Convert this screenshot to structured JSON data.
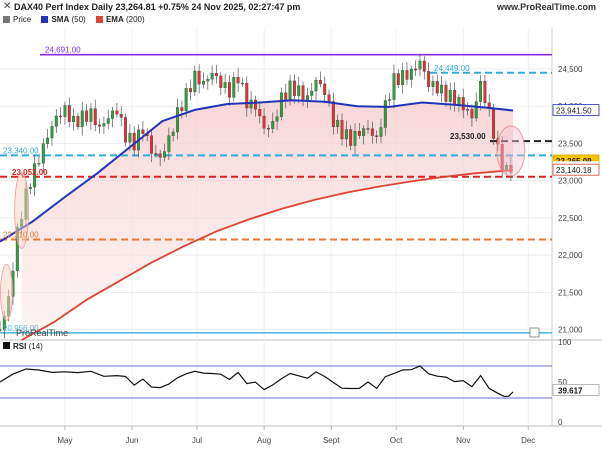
{
  "header": {
    "title": "DAX40 Perf Index Daily 23,264.81 +0.75% 24 Nov 2025, 02:27:47 pm",
    "site": "www.ProRealTime.com",
    "brand": "ProRealTime"
  },
  "legend": {
    "price_label": "Price",
    "sma_label": "SMA",
    "sma_period": "(50)",
    "ema_label": "EMA",
    "ema_period": "(200)",
    "colors": {
      "price": "#777777",
      "sma": "#2233bb",
      "ema": "#dd4433"
    }
  },
  "chart_data": [
    {
      "type": "line",
      "title": "DAX40 Perf Index Daily",
      "y_axis_side": "right",
      "ylim": [
        20860,
        25050
      ],
      "y_ticks": [
        21000,
        21500,
        22000,
        22500,
        23000,
        23500,
        24000,
        24500
      ],
      "y_tick_labels": [
        "21,000",
        "21,500",
        "22,000",
        "22,500",
        "23,000",
        "23,500",
        "24,000",
        "24,500"
      ],
      "x_months": [
        {
          "label": "May",
          "day": 30
        },
        {
          "label": "Jun",
          "day": 61
        },
        {
          "label": "Jul",
          "day": 91
        },
        {
          "label": "Aug",
          "day": 122
        },
        {
          "label": "Sept",
          "day": 153
        },
        {
          "label": "Oct",
          "day": 183
        },
        {
          "label": "Nov",
          "day": 214
        },
        {
          "label": "Dec",
          "day": 244
        }
      ],
      "x_range": [
        0,
        255
      ],
      "current_day": 237,
      "price_close": [
        [
          0,
          21000
        ],
        [
          4,
          21400
        ],
        [
          8,
          22300
        ],
        [
          11,
          22700
        ],
        [
          14,
          23000
        ],
        [
          18,
          23300
        ],
        [
          22,
          23600
        ],
        [
          26,
          23850
        ],
        [
          30,
          23950
        ],
        [
          34,
          23780
        ],
        [
          38,
          23850
        ],
        [
          42,
          23900
        ],
        [
          46,
          23700
        ],
        [
          50,
          23850
        ],
        [
          54,
          23950
        ],
        [
          58,
          23600
        ],
        [
          62,
          23500
        ],
        [
          66,
          23700
        ],
        [
          70,
          23400
        ],
        [
          74,
          23300
        ],
        [
          78,
          23550
        ],
        [
          82,
          23900
        ],
        [
          86,
          24150
        ],
        [
          90,
          24400
        ],
        [
          94,
          24300
        ],
        [
          98,
          24450
        ],
        [
          102,
          24300
        ],
        [
          106,
          24200
        ],
        [
          110,
          24400
        ],
        [
          114,
          24050
        ],
        [
          118,
          24000
        ],
        [
          122,
          23700
        ],
        [
          126,
          23750
        ],
        [
          130,
          24100
        ],
        [
          134,
          24250
        ],
        [
          138,
          24200
        ],
        [
          142,
          24100
        ],
        [
          146,
          24350
        ],
        [
          150,
          24200
        ],
        [
          154,
          23800
        ],
        [
          158,
          23650
        ],
        [
          162,
          23550
        ],
        [
          166,
          23650
        ],
        [
          170,
          23700
        ],
        [
          174,
          23550
        ],
        [
          178,
          24000
        ],
        [
          182,
          24350
        ],
        [
          186,
          24400
        ],
        [
          190,
          24450
        ],
        [
          194,
          24600
        ],
        [
          198,
          24300
        ],
        [
          202,
          24250
        ],
        [
          206,
          24150
        ],
        [
          210,
          24100
        ],
        [
          214,
          24000
        ],
        [
          218,
          23850
        ],
        [
          222,
          24300
        ],
        [
          226,
          23900
        ],
        [
          230,
          23400
        ],
        [
          233,
          23150
        ],
        [
          235,
          23100
        ],
        [
          237,
          23265
        ]
      ],
      "sma_50": [
        [
          0,
          22180
        ],
        [
          15,
          22450
        ],
        [
          30,
          22780
        ],
        [
          45,
          23100
        ],
        [
          60,
          23450
        ],
        [
          75,
          23800
        ],
        [
          90,
          23950
        ],
        [
          105,
          24030
        ],
        [
          120,
          24050
        ],
        [
          135,
          24080
        ],
        [
          150,
          24060
        ],
        [
          165,
          24000
        ],
        [
          180,
          23990
        ],
        [
          195,
          24050
        ],
        [
          210,
          24020
        ],
        [
          225,
          23980
        ],
        [
          237,
          23942
        ]
      ],
      "ema_200": [
        [
          10,
          20860
        ],
        [
          25,
          21100
        ],
        [
          40,
          21400
        ],
        [
          55,
          21650
        ],
        [
          70,
          21900
        ],
        [
          85,
          22120
        ],
        [
          100,
          22320
        ],
        [
          115,
          22480
        ],
        [
          130,
          22620
        ],
        [
          145,
          22740
        ],
        [
          160,
          22840
        ],
        [
          175,
          22920
        ],
        [
          190,
          22990
        ],
        [
          205,
          23050
        ],
        [
          220,
          23100
        ],
        [
          237,
          23140
        ]
      ],
      "levels": [
        {
          "label": "24,691.00",
          "value": 24691,
          "color": "#8a2be2",
          "style": "solid"
        },
        {
          "label": "24,449.00",
          "value": 24449,
          "color": "#33aadd",
          "style": "dash"
        },
        {
          "label": "23,530.00",
          "value": 23530,
          "color": "#222222",
          "style": "dash"
        },
        {
          "label": "23,340.00",
          "value": 23340,
          "color": "#33aadd",
          "style": "dash"
        },
        {
          "label": "23,052.00",
          "value": 23052,
          "color": "#dd2222",
          "style": "dash"
        },
        {
          "label": "22,210.00",
          "value": 22210,
          "color": "#ee7733",
          "style": "dash"
        },
        {
          "label": "20,956.00",
          "value": 20956,
          "color": "#55bbdd",
          "style": "solid"
        }
      ],
      "price_tags": [
        {
          "label": "23,941.50",
          "value": 23941.5,
          "kind": "sma"
        },
        {
          "label": "23,265.09",
          "value": 23265.09,
          "kind": "price"
        },
        {
          "label": "3h07m",
          "value": 23180,
          "kind": "timer"
        },
        {
          "label": "23,140.18",
          "value": 23140.18,
          "kind": "ema"
        }
      ]
    },
    {
      "type": "line",
      "title": "RSI",
      "subtitle": "(14)",
      "ylim": [
        0,
        100
      ],
      "y_ticks": [
        0,
        50,
        100
      ],
      "levels": [
        70,
        30
      ],
      "current_label": "39.617",
      "values": [
        [
          0,
          50
        ],
        [
          6,
          58
        ],
        [
          12,
          65
        ],
        [
          18,
          66
        ],
        [
          24,
          64
        ],
        [
          30,
          63
        ],
        [
          36,
          60
        ],
        [
          42,
          62
        ],
        [
          48,
          58
        ],
        [
          54,
          60
        ],
        [
          58,
          55
        ],
        [
          62,
          48
        ],
        [
          66,
          52
        ],
        [
          70,
          45
        ],
        [
          74,
          42
        ],
        [
          78,
          48
        ],
        [
          82,
          55
        ],
        [
          86,
          60
        ],
        [
          90,
          64
        ],
        [
          94,
          60
        ],
        [
          98,
          62
        ],
        [
          102,
          58
        ],
        [
          106,
          55
        ],
        [
          110,
          60
        ],
        [
          114,
          50
        ],
        [
          118,
          48
        ],
        [
          122,
          42
        ],
        [
          126,
          45
        ],
        [
          130,
          55
        ],
        [
          134,
          60
        ],
        [
          138,
          58
        ],
        [
          142,
          55
        ],
        [
          146,
          62
        ],
        [
          150,
          58
        ],
        [
          154,
          48
        ],
        [
          158,
          44
        ],
        [
          162,
          40
        ],
        [
          166,
          44
        ],
        [
          170,
          48
        ],
        [
          174,
          44
        ],
        [
          178,
          55
        ],
        [
          182,
          62
        ],
        [
          186,
          64
        ],
        [
          190,
          66
        ],
        [
          194,
          70
        ],
        [
          198,
          60
        ],
        [
          202,
          58
        ],
        [
          206,
          55
        ],
        [
          210,
          52
        ],
        [
          214,
          50
        ],
        [
          218,
          46
        ],
        [
          222,
          56
        ],
        [
          226,
          44
        ],
        [
          230,
          34
        ],
        [
          233,
          30
        ],
        [
          235,
          32
        ],
        [
          237,
          39.6
        ]
      ]
    }
  ]
}
